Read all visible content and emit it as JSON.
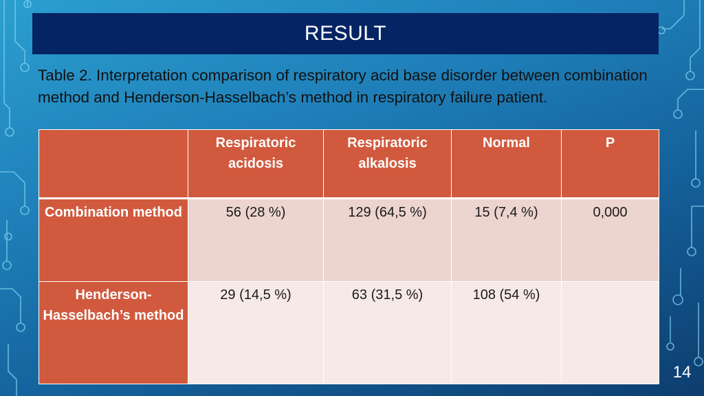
{
  "slide": {
    "title": "RESULT",
    "caption": "Table 2. Interpretation comparison of respiratory acid base disorder between combination method and Henderson-Hasselbach’s method in respiratory failure patient.",
    "page_number": "14"
  },
  "table": {
    "headers": [
      "",
      "Respiratoric acidosis",
      "Respiratoric alkalosis",
      "Normal",
      "P"
    ],
    "rows": [
      {
        "label": "Combination method",
        "cells": [
          "56 (28 %)",
          "129 (64,5 %)",
          "15 (7,4 %)",
          "0,000"
        ]
      },
      {
        "label": "Henderson-Hasselbach’s method",
        "cells": [
          "29 (14,5 %)",
          "63 (31,5 %)",
          "108 (54 %)",
          ""
        ]
      }
    ]
  },
  "colors": {
    "title_bar": "#052464",
    "header_fill": "#d15a3e",
    "row1_fill": "#ecd4cf",
    "row2_fill": "#f6e9e6",
    "background": "#1f7fb8"
  }
}
